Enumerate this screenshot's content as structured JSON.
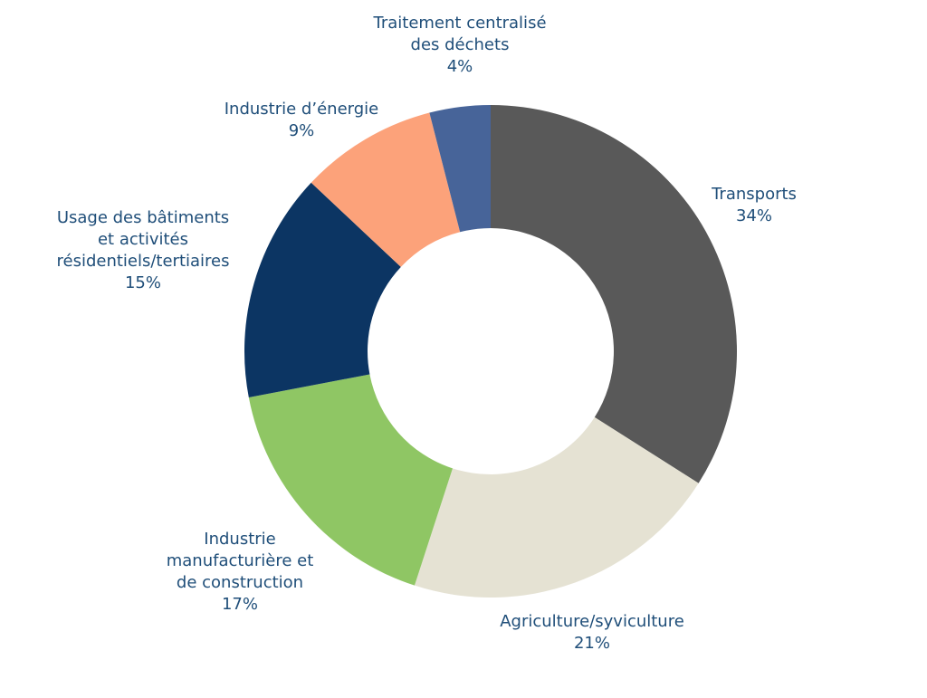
{
  "chart_data": {
    "type": "pie",
    "variant": "donut",
    "title": "",
    "slices": [
      {
        "label_lines": [
          "Transports"
        ],
        "value": 34,
        "pct_label": "34%",
        "color": "#595959"
      },
      {
        "label_lines": [
          "Agriculture/syviculture"
        ],
        "value": 21,
        "pct_label": "21%",
        "color": "#e5e2d3"
      },
      {
        "label_lines": [
          "Industrie",
          "manufacturière et",
          "de construction"
        ],
        "value": 17,
        "pct_label": "17%",
        "color": "#8fc664"
      },
      {
        "label_lines": [
          "Usage des bâtiments",
          "et activités",
          "résidentiels/tertiaires"
        ],
        "value": 15,
        "pct_label": "15%",
        "color": "#0c3563"
      },
      {
        "label_lines": [
          "Industrie d’énergie"
        ],
        "value": 9,
        "pct_label": "9%",
        "color": "#fca27a"
      },
      {
        "label_lines": [
          "Traitement centralisé",
          "des déchets"
        ],
        "value": 4,
        "pct_label": "4%",
        "color": "#476499"
      }
    ],
    "start_angle_deg": 0,
    "direction": "clockwise"
  },
  "colors": {
    "label_text": "#1f4e79",
    "background": "#ffffff"
  }
}
